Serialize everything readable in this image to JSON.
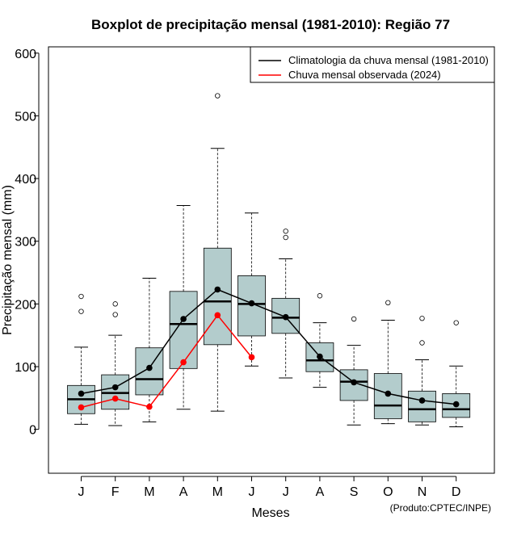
{
  "chart_data": {
    "type": "boxplot",
    "title": "Boxplot de precipitação mensal (1981-2010): Região 77",
    "xlabel": "Meses",
    "ylabel": "Precipitação mensal (mm)",
    "ylim": [
      -70,
      610
    ],
    "yticks": [
      0,
      100,
      200,
      300,
      400,
      500,
      600
    ],
    "categories": [
      "J",
      "F",
      "M",
      "A",
      "M",
      "J",
      "J",
      "A",
      "S",
      "O",
      "N",
      "D"
    ],
    "boxes": [
      {
        "month": "J",
        "whisker_low": 8,
        "q1": 25,
        "median": 48,
        "q3": 70,
        "whisker_high": 131,
        "outliers": [
          188,
          212
        ]
      },
      {
        "month": "F",
        "whisker_low": 6,
        "q1": 32,
        "median": 58,
        "q3": 87,
        "whisker_high": 150,
        "outliers": [
          183,
          200
        ]
      },
      {
        "month": "M",
        "whisker_low": 12,
        "q1": 55,
        "median": 80,
        "q3": 130,
        "whisker_high": 241,
        "outliers": []
      },
      {
        "month": "A",
        "whisker_low": 32,
        "q1": 97,
        "median": 168,
        "q3": 220,
        "whisker_high": 357,
        "outliers": []
      },
      {
        "month": "M",
        "whisker_low": 29,
        "q1": 135,
        "median": 204,
        "q3": 289,
        "whisker_high": 448,
        "outliers": [
          532
        ]
      },
      {
        "month": "J",
        "whisker_low": 101,
        "q1": 149,
        "median": 200,
        "q3": 245,
        "whisker_high": 345,
        "outliers": []
      },
      {
        "month": "J",
        "whisker_low": 82,
        "q1": 153,
        "median": 178,
        "q3": 209,
        "whisker_high": 272,
        "outliers": [
          306,
          316
        ]
      },
      {
        "month": "A",
        "whisker_low": 67,
        "q1": 92,
        "median": 110,
        "q3": 138,
        "whisker_high": 170,
        "outliers": [
          213
        ]
      },
      {
        "month": "S",
        "whisker_low": 7,
        "q1": 46,
        "median": 76,
        "q3": 95,
        "whisker_high": 134,
        "outliers": [
          176
        ]
      },
      {
        "month": "O",
        "whisker_low": 9,
        "q1": 17,
        "median": 38,
        "q3": 89,
        "whisker_high": 174,
        "outliers": [
          202
        ]
      },
      {
        "month": "N",
        "whisker_low": 7,
        "q1": 12,
        "median": 32,
        "q3": 61,
        "whisker_high": 111,
        "outliers": [
          138,
          177
        ]
      },
      {
        "month": "D",
        "whisker_low": 4,
        "q1": 19,
        "median": 32,
        "q3": 57,
        "whisker_high": 101,
        "outliers": [
          170
        ]
      }
    ],
    "series": [
      {
        "name": "Climatologia da chuva mensal (1981-2010)",
        "color": "#000000",
        "values": [
          57,
          67,
          98,
          176,
          223,
          201,
          179,
          116,
          75,
          57,
          46,
          40
        ]
      },
      {
        "name": "Chuva mensal observada (2024)",
        "color": "#ff0000",
        "values": [
          35,
          49,
          36,
          107,
          182,
          115,
          null,
          null,
          null,
          null,
          null,
          null
        ]
      }
    ],
    "legend_position": "top-right",
    "box_fill": "#b3cccc",
    "credit": "(Produto:CPTEC/INPE)"
  }
}
